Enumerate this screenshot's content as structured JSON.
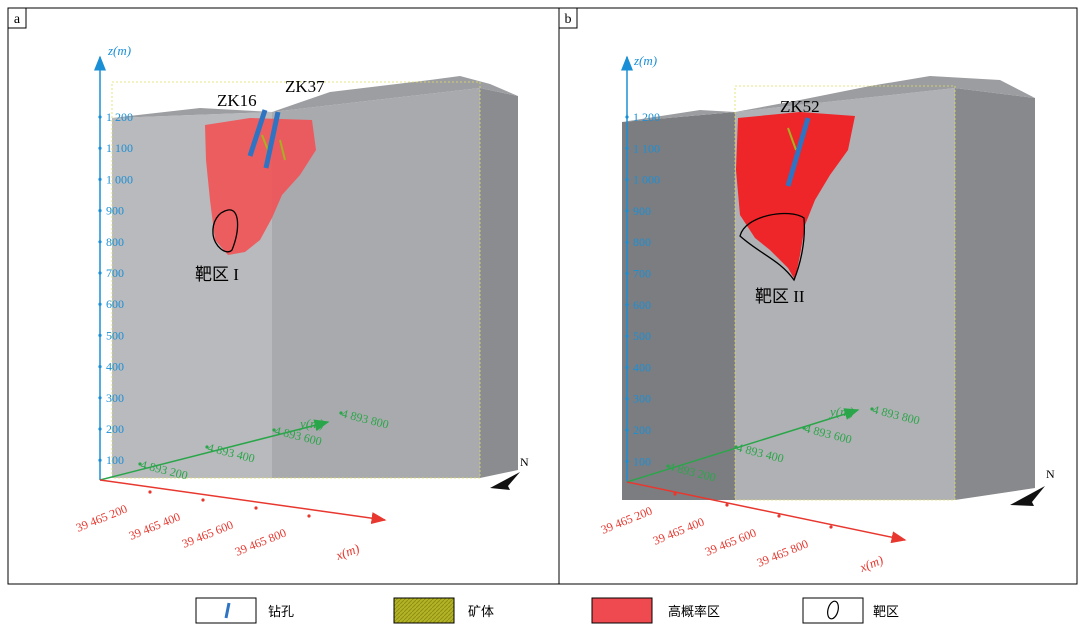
{
  "colors": {
    "z_axis": "#1a8fd6",
    "y_axis": "#2aa64a",
    "x_axis": "#e8372e",
    "block_light": "#b8b9bc",
    "block_dark": "#8c8d90",
    "high_prob": "#f0383c",
    "drill": "#3a7fc8",
    "ore": "#a8b020"
  },
  "panels": [
    {
      "label": "a",
      "z_title": "z(m)",
      "y_title": "y(m)",
      "x_title": "x(m)",
      "z_ticks": [
        "1 200",
        "1 100",
        "1 000",
        "900",
        "800",
        "700",
        "600",
        "500",
        "400",
        "300",
        "200",
        "100"
      ],
      "y_ticks": [
        "4 893 200",
        "4 893 400",
        "4 893 600",
        "4 893 800"
      ],
      "x_ticks": [
        "39 465 200",
        "39 465 400",
        "39 465 600",
        "39 465 800"
      ],
      "drill_labels": [
        "ZK16",
        "ZK37"
      ],
      "target_label": "靶区 I",
      "north": "N"
    },
    {
      "label": "b",
      "z_title": "z(m)",
      "y_title": "y(m)",
      "x_title": "x(m)",
      "z_ticks": [
        "1 200",
        "1 100",
        "1 000",
        "900",
        "800",
        "700",
        "600",
        "500",
        "400",
        "300",
        "200",
        "100"
      ],
      "y_ticks": [
        "4 893 200",
        "4 893 400",
        "4 893 600",
        "4 893 800"
      ],
      "x_ticks": [
        "39 465 200",
        "39 465 400",
        "39 465 600",
        "39 465 800"
      ],
      "drill_labels": [
        "ZK52"
      ],
      "target_label": "靶区 II",
      "north": "N"
    }
  ],
  "legend": [
    {
      "icon": "drill-hole-icon",
      "label": "钻孔"
    },
    {
      "icon": "ore-body-icon",
      "label": "矿体"
    },
    {
      "icon": "high-probability-icon",
      "label": "高概率区"
    },
    {
      "icon": "target-area-icon",
      "label": "靶区"
    }
  ]
}
